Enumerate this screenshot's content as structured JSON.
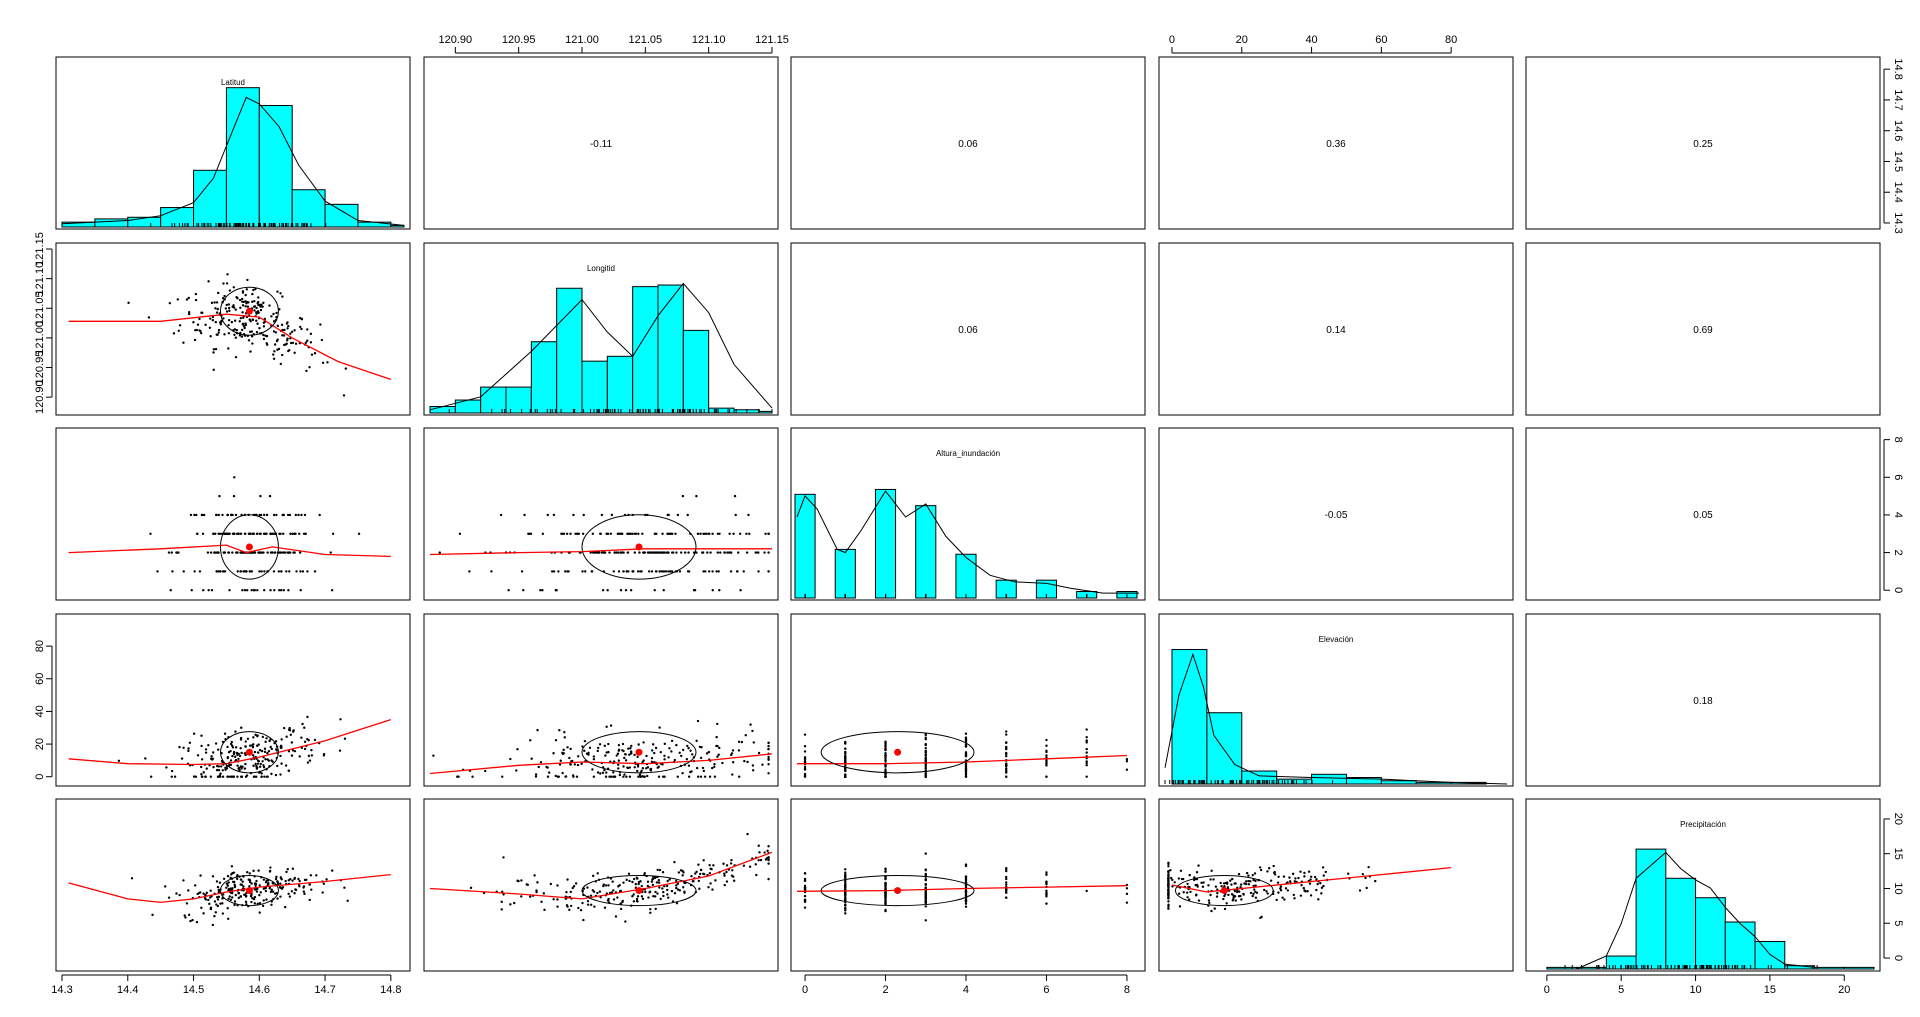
{
  "chart_data": {
    "type": "scatter",
    "title": "",
    "layout": "pairs-panels",
    "variables": [
      {
        "name": "Latitud",
        "range": [
          14.3,
          14.82
        ],
        "ticks": [
          14.3,
          14.4,
          14.5,
          14.6,
          14.7,
          14.8
        ],
        "tick_labels": [
          "14.3",
          "14.4",
          "14.5",
          "14.6",
          "14.7",
          "14.8"
        ],
        "hist": {
          "breaks": [
            14.3,
            14.35,
            14.4,
            14.45,
            14.5,
            14.55,
            14.6,
            14.65,
            14.7,
            14.75,
            14.8,
            14.82
          ],
          "heights": [
            0.03,
            0.05,
            0.06,
            0.12,
            0.35,
            0.86,
            0.75,
            0.23,
            0.14,
            0.03,
            0.01
          ]
        },
        "density": [
          [
            14.3,
            0.02
          ],
          [
            14.4,
            0.04
          ],
          [
            14.45,
            0.07
          ],
          [
            14.5,
            0.15
          ],
          [
            14.53,
            0.3
          ],
          [
            14.56,
            0.6
          ],
          [
            14.58,
            0.8
          ],
          [
            14.6,
            0.76
          ],
          [
            14.63,
            0.62
          ],
          [
            14.66,
            0.38
          ],
          [
            14.7,
            0.16
          ],
          [
            14.75,
            0.04
          ],
          [
            14.82,
            0.01
          ]
        ],
        "mean": 14.585,
        "sd": 0.044
      },
      {
        "name": "Longitid",
        "range": [
          120.88,
          121.15
        ],
        "ticks": [
          120.9,
          120.95,
          121.0,
          121.05,
          121.1,
          121.15
        ],
        "tick_labels": [
          "120.90",
          "120.95",
          "121.00",
          "121.05",
          "121.10",
          "121.15"
        ],
        "hist": {
          "breaks": [
            120.88,
            120.9,
            120.92,
            120.94,
            120.96,
            120.98,
            121.0,
            121.02,
            121.04,
            121.06,
            121.08,
            121.1,
            121.12,
            121.14,
            121.15
          ],
          "heights": [
            0.04,
            0.08,
            0.16,
            0.16,
            0.44,
            0.77,
            0.32,
            0.35,
            0.78,
            0.79,
            0.51,
            0.03,
            0.02,
            0.01
          ]
        },
        "density": [
          [
            120.88,
            0.02
          ],
          [
            120.92,
            0.1
          ],
          [
            120.96,
            0.38
          ],
          [
            121.0,
            0.7
          ],
          [
            121.02,
            0.5
          ],
          [
            121.04,
            0.35
          ],
          [
            121.06,
            0.6
          ],
          [
            121.08,
            0.8
          ],
          [
            121.1,
            0.62
          ],
          [
            121.12,
            0.3
          ],
          [
            121.15,
            0.03
          ]
        ],
        "mean": 121.045,
        "sd": 0.045
      },
      {
        "name": "Altura_inundación",
        "range": [
          -0.2,
          8.3
        ],
        "ticks": [
          0,
          2,
          4,
          6,
          8
        ],
        "tick_labels": [
          "0",
          "2",
          "4",
          "6",
          "8"
        ],
        "hist": {
          "breaks": [
            -0.25,
            0.25,
            0.75,
            1.25,
            1.75,
            2.25,
            2.75,
            3.25,
            3.75,
            4.25,
            4.75,
            5.25,
            5.75,
            6.25,
            6.75,
            7.25,
            7.75,
            8.25
          ],
          "heights": [
            0.64,
            0,
            0.3,
            0,
            0.67,
            0,
            0.57,
            0,
            0.27,
            0,
            0.11,
            0,
            0.11,
            0,
            0.04,
            0,
            0.04
          ]
        },
        "density": [
          [
            -0.2,
            0.5
          ],
          [
            0.0,
            0.63
          ],
          [
            0.3,
            0.55
          ],
          [
            0.8,
            0.3
          ],
          [
            1.0,
            0.28
          ],
          [
            1.4,
            0.42
          ],
          [
            2.0,
            0.66
          ],
          [
            2.5,
            0.5
          ],
          [
            3.0,
            0.58
          ],
          [
            3.5,
            0.38
          ],
          [
            4.0,
            0.25
          ],
          [
            4.6,
            0.14
          ],
          [
            5.2,
            0.1
          ],
          [
            6.0,
            0.09
          ],
          [
            6.6,
            0.06
          ],
          [
            7.4,
            0.03
          ],
          [
            8.3,
            0.03
          ]
        ],
        "mean": 2.3,
        "sd": 1.9
      },
      {
        "name": "Elevación",
        "range": [
          -2,
          96
        ],
        "ticks": [
          0,
          20,
          40,
          60,
          80
        ],
        "tick_labels": [
          "0",
          "20",
          "40",
          "60",
          "80"
        ],
        "hist": {
          "breaks": [
            0,
            10,
            20,
            30,
            40,
            50,
            60,
            70,
            80,
            90
          ],
          "heights": [
            0.83,
            0.44,
            0.08,
            0.03,
            0.06,
            0.04,
            0.02,
            0.01,
            0.01
          ]
        },
        "density": [
          [
            -2,
            0.1
          ],
          [
            2,
            0.55
          ],
          [
            6,
            0.8
          ],
          [
            9,
            0.6
          ],
          [
            12,
            0.3
          ],
          [
            18,
            0.12
          ],
          [
            25,
            0.05
          ],
          [
            40,
            0.04
          ],
          [
            60,
            0.03
          ],
          [
            80,
            0.01
          ],
          [
            96,
            0.0
          ]
        ],
        "mean": 15,
        "sd": 14
      },
      {
        "name": "Precipitación",
        "range": [
          -1,
          22
        ],
        "ticks": [
          0,
          5,
          10,
          15,
          20
        ],
        "tick_labels": [
          "0",
          "5",
          "10",
          "15",
          "20"
        ],
        "hist": {
          "breaks": [
            0,
            2,
            4,
            6,
            8,
            10,
            12,
            14,
            16,
            18,
            20,
            22
          ],
          "heights": [
            0.01,
            0.01,
            0.08,
            0.74,
            0.56,
            0.44,
            0.29,
            0.17,
            0.02,
            0.01,
            0.01
          ]
        },
        "density": [
          [
            2,
            0.0
          ],
          [
            4,
            0.08
          ],
          [
            5,
            0.28
          ],
          [
            6,
            0.56
          ],
          [
            8,
            0.72
          ],
          [
            9,
            0.62
          ],
          [
            10,
            0.55
          ],
          [
            11,
            0.5
          ],
          [
            12,
            0.38
          ],
          [
            13,
            0.28
          ],
          [
            14,
            0.2
          ],
          [
            15,
            0.09
          ],
          [
            16,
            0.03
          ],
          [
            18,
            0.01
          ]
        ],
        "mean": 9.7,
        "sd": 2.4
      }
    ],
    "correlations": [
      {
        "row": 0,
        "col": 1,
        "value": "-0.11"
      },
      {
        "row": 0,
        "col": 2,
        "value": "0.06"
      },
      {
        "row": 0,
        "col": 3,
        "value": "0.36"
      },
      {
        "row": 0,
        "col": 4,
        "value": "0.25"
      },
      {
        "row": 1,
        "col": 2,
        "value": "0.06"
      },
      {
        "row": 1,
        "col": 3,
        "value": "0.14"
      },
      {
        "row": 1,
        "col": 4,
        "value": "0.69"
      },
      {
        "row": 2,
        "col": 3,
        "value": "-0.05"
      },
      {
        "row": 2,
        "col": 4,
        "value": "0.05"
      },
      {
        "row": 3,
        "col": 4,
        "value": "0.18"
      }
    ],
    "loess": [
      {
        "row": 1,
        "col": 0,
        "points": [
          [
            14.31,
            121.028
          ],
          [
            14.45,
            121.028
          ],
          [
            14.55,
            121.04
          ],
          [
            14.6,
            121.035
          ],
          [
            14.65,
            121.0
          ],
          [
            14.72,
            120.96
          ],
          [
            14.8,
            120.93
          ]
        ]
      },
      {
        "row": 2,
        "col": 0,
        "points": [
          [
            14.31,
            2.0
          ],
          [
            14.45,
            2.2
          ],
          [
            14.55,
            2.4
          ],
          [
            14.58,
            2.0
          ],
          [
            14.62,
            2.3
          ],
          [
            14.7,
            1.9
          ],
          [
            14.8,
            1.8
          ]
        ]
      },
      {
        "row": 2,
        "col": 1,
        "points": [
          [
            120.88,
            1.9
          ],
          [
            120.95,
            2.0
          ],
          [
            121.0,
            2.05
          ],
          [
            121.05,
            2.2
          ],
          [
            121.1,
            2.2
          ],
          [
            121.15,
            2.2
          ]
        ]
      },
      {
        "row": 3,
        "col": 0,
        "points": [
          [
            14.31,
            11
          ],
          [
            14.4,
            8
          ],
          [
            14.5,
            7.5
          ],
          [
            14.55,
            8
          ],
          [
            14.6,
            12
          ],
          [
            14.7,
            22
          ],
          [
            14.8,
            35
          ]
        ]
      },
      {
        "row": 3,
        "col": 1,
        "points": [
          [
            120.88,
            2
          ],
          [
            120.95,
            7
          ],
          [
            121.0,
            9
          ],
          [
            121.05,
            8
          ],
          [
            121.1,
            10
          ],
          [
            121.15,
            14
          ]
        ]
      },
      {
        "row": 3,
        "col": 2,
        "points": [
          [
            -0.2,
            8
          ],
          [
            2,
            8
          ],
          [
            4,
            9
          ],
          [
            6,
            11
          ],
          [
            8,
            13
          ]
        ]
      },
      {
        "row": 4,
        "col": 0,
        "points": [
          [
            14.31,
            10.8
          ],
          [
            14.4,
            8.5
          ],
          [
            14.45,
            8.0
          ],
          [
            14.5,
            8.5
          ],
          [
            14.55,
            9.5
          ],
          [
            14.6,
            10.2
          ],
          [
            14.7,
            11
          ],
          [
            14.8,
            12
          ]
        ]
      },
      {
        "row": 4,
        "col": 1,
        "points": [
          [
            120.88,
            10.0
          ],
          [
            120.95,
            9.2
          ],
          [
            121.0,
            8.5
          ],
          [
            121.05,
            10.0
          ],
          [
            121.1,
            11.8
          ],
          [
            121.15,
            15.2
          ]
        ]
      },
      {
        "row": 4,
        "col": 2,
        "points": [
          [
            -0.2,
            9.6
          ],
          [
            2,
            9.7
          ],
          [
            4,
            10
          ],
          [
            6,
            10.2
          ],
          [
            8,
            10.4
          ]
        ]
      },
      {
        "row": 4,
        "col": 3,
        "points": [
          [
            0,
            10.5
          ],
          [
            10,
            9.5
          ],
          [
            20,
            10
          ],
          [
            40,
            11
          ],
          [
            60,
            12
          ],
          [
            80,
            13
          ]
        ]
      }
    ],
    "grid": false,
    "legend": "none"
  }
}
